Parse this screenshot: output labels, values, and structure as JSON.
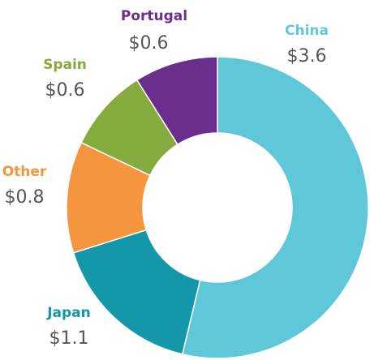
{
  "chart_data": {
    "type": "donut",
    "categories": [
      "China",
      "Japan",
      "Other",
      "Spain",
      "Portugal"
    ],
    "values": [
      3.6,
      1.1,
      0.8,
      0.6,
      0.6
    ],
    "value_labels": [
      "$3.6",
      "$1.1",
      "$0.8",
      "$0.6",
      "$0.6"
    ],
    "colors": [
      "#5ec8d8",
      "#1497a8",
      "#f5963f",
      "#85aa3d",
      "#6b2e8c"
    ]
  }
}
